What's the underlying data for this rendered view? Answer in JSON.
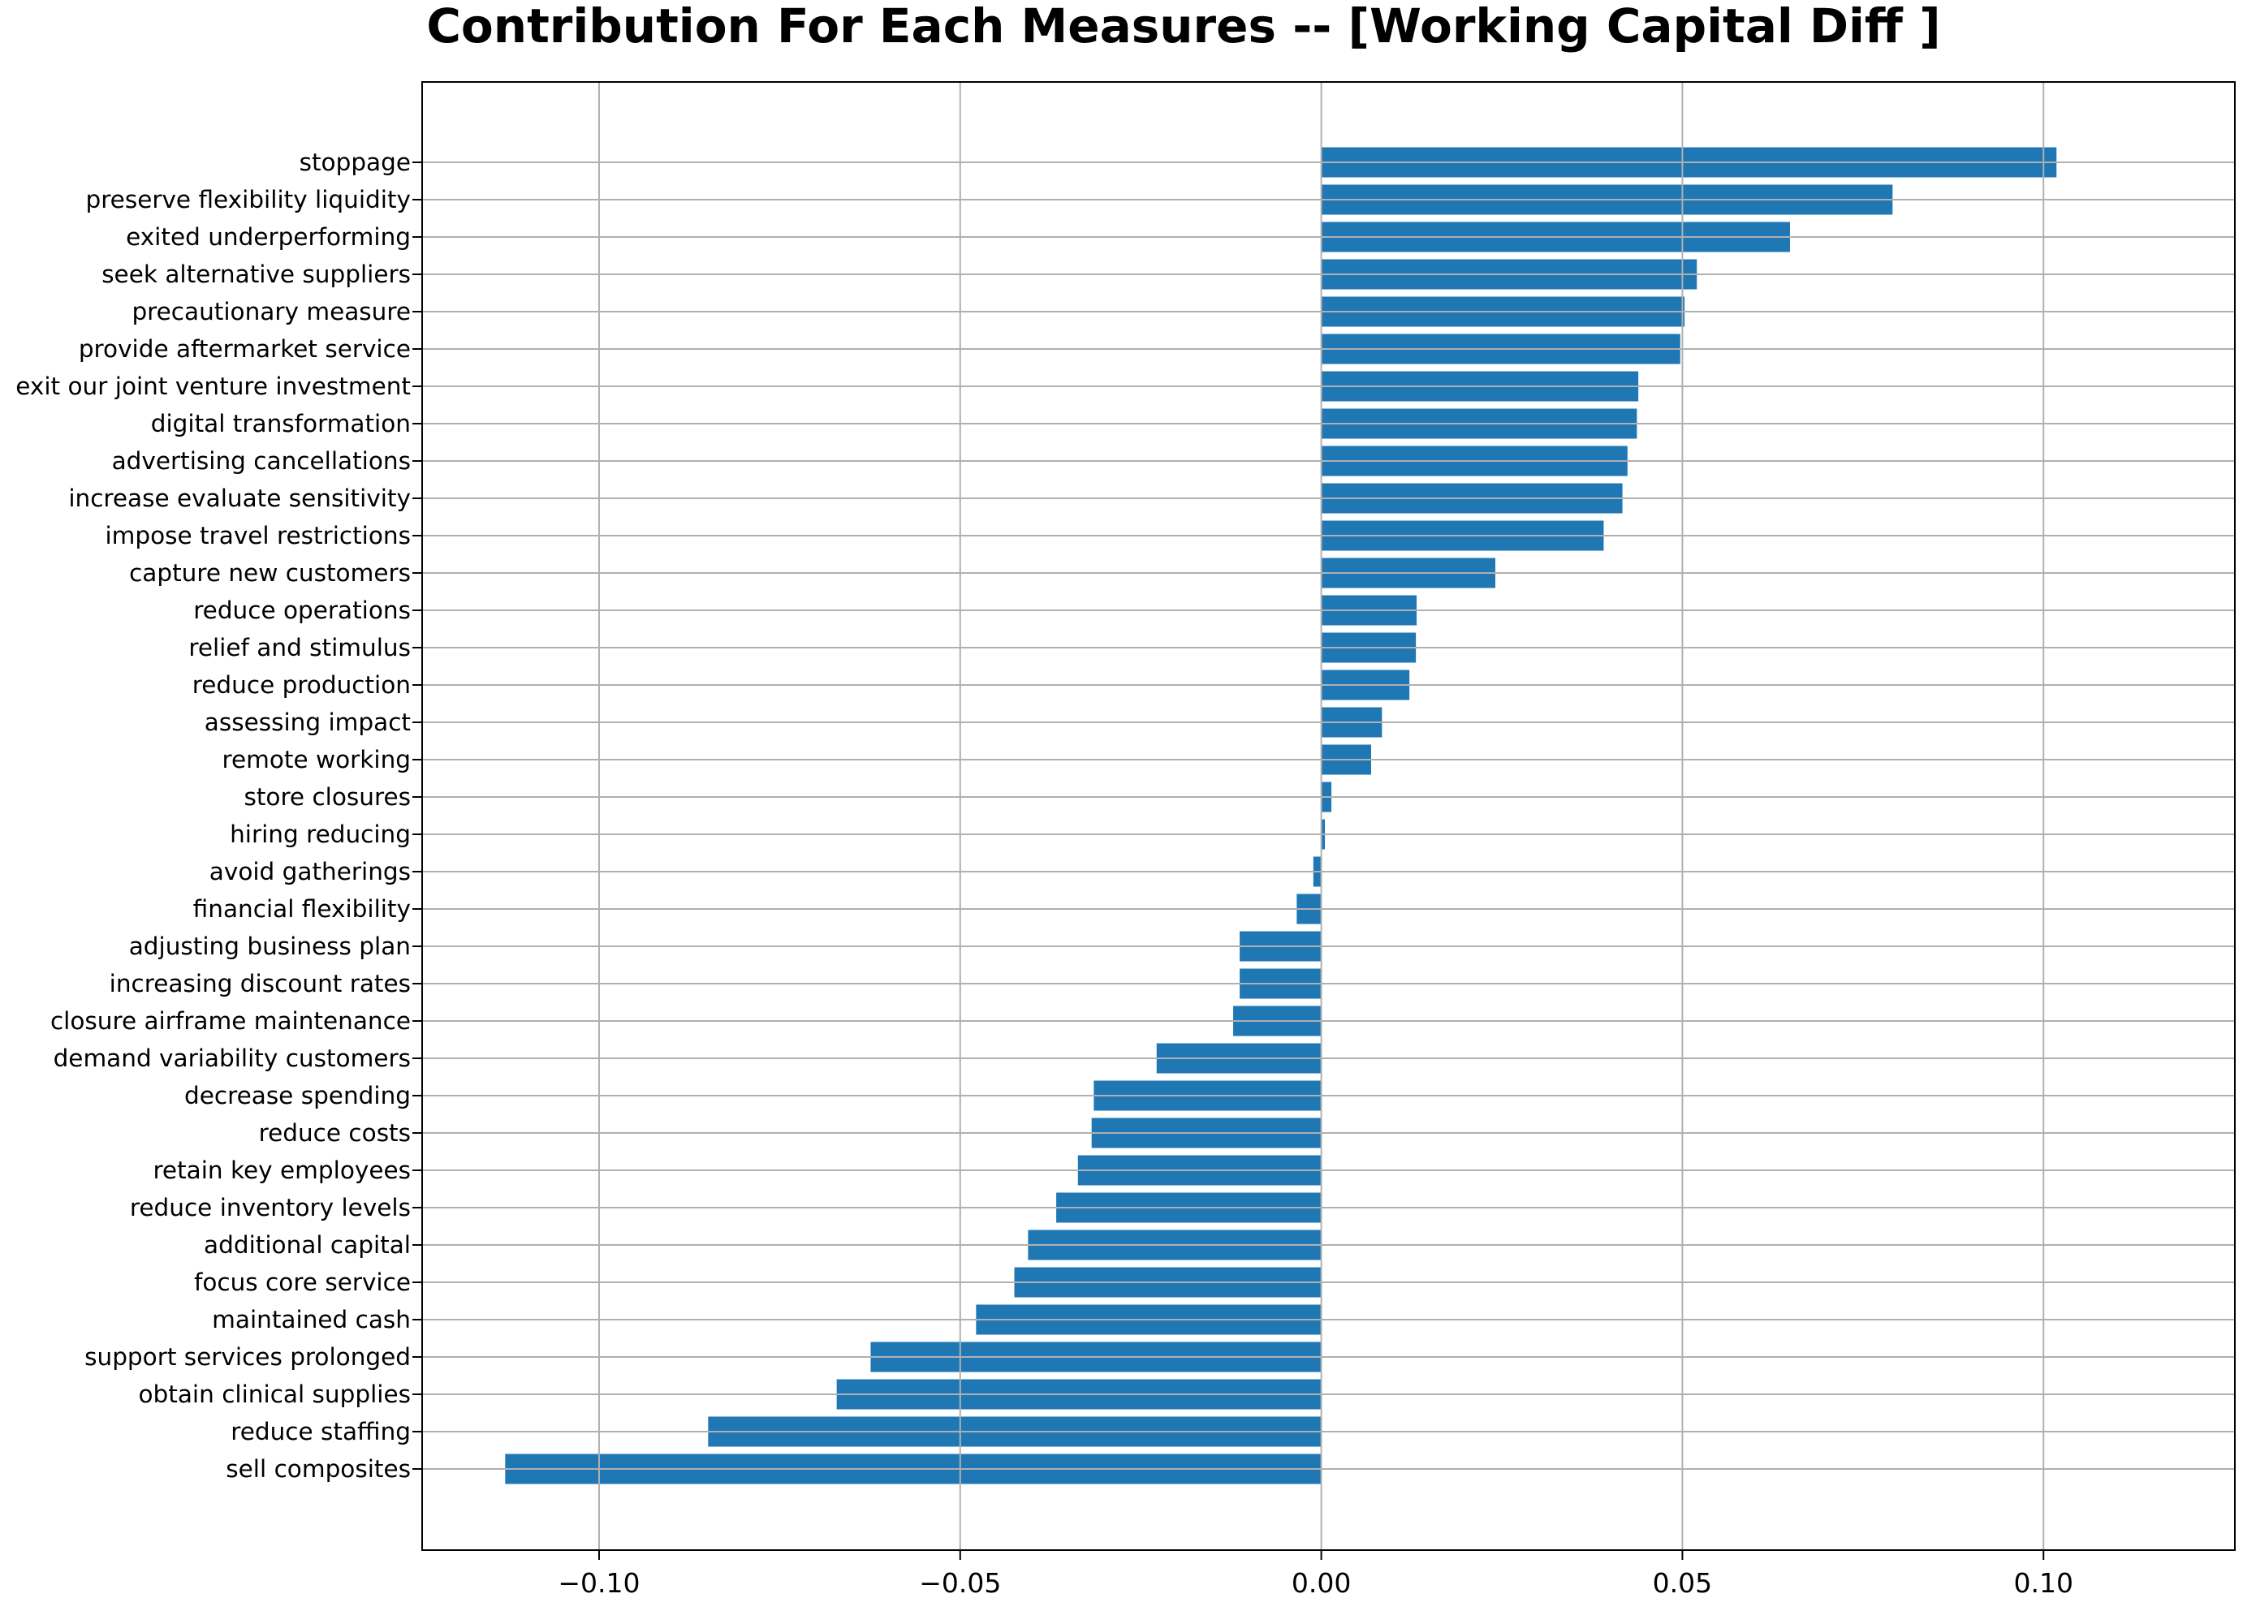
{
  "chart_data": {
    "type": "bar",
    "orientation": "horizontal",
    "title": "Contribution For Each Measures -- [Working Capital Diff ]",
    "xlabel": "",
    "ylabel": "",
    "xlim": [
      -0.1245,
      0.1265
    ],
    "xticks": [
      -0.1,
      -0.05,
      0.0,
      0.05,
      0.1
    ],
    "xtick_labels": [
      "−0.10",
      "−0.05",
      "0.00",
      "0.05",
      "0.10"
    ],
    "grid": true,
    "bar_color": "#1f77b4",
    "categories": [
      "stoppage",
      "preserve flexibility liquidity",
      "exited underperforming",
      "seek alternative suppliers",
      "precautionary measure",
      "provide aftermarket service",
      "exit our joint venture investment",
      "digital transformation",
      "advertising cancellations",
      "increase evaluate sensitivity",
      "impose travel restrictions",
      "capture new customers",
      "reduce operations",
      "relief and stimulus",
      "reduce production",
      "assessing impact",
      "remote working",
      "store closures",
      "hiring reducing",
      "avoid gatherings",
      "financial flexibility",
      "adjusting business plan",
      "increasing discount rates",
      "closure airframe maintenance",
      "demand variability customers",
      "decrease spending",
      "reduce costs",
      "retain key employees",
      "reduce inventory levels",
      "additional capital",
      "focus core service",
      "maintained cash",
      "support services prolonged",
      "obtain clinical supplies",
      "reduce staffing",
      "sell composites"
    ],
    "values": [
      0.1018,
      0.0791,
      0.0649,
      0.052,
      0.0503,
      0.0497,
      0.0439,
      0.0437,
      0.0424,
      0.0417,
      0.0391,
      0.0241,
      0.0132,
      0.0131,
      0.0122,
      0.0084,
      0.0069,
      0.0014,
      0.0005,
      -0.0011,
      -0.0034,
      -0.0113,
      -0.0113,
      -0.0122,
      -0.0228,
      -0.0315,
      -0.0318,
      -0.0337,
      -0.0367,
      -0.0406,
      -0.0425,
      -0.0478,
      -0.0624,
      -0.0671,
      -0.0849,
      -0.113
    ]
  }
}
